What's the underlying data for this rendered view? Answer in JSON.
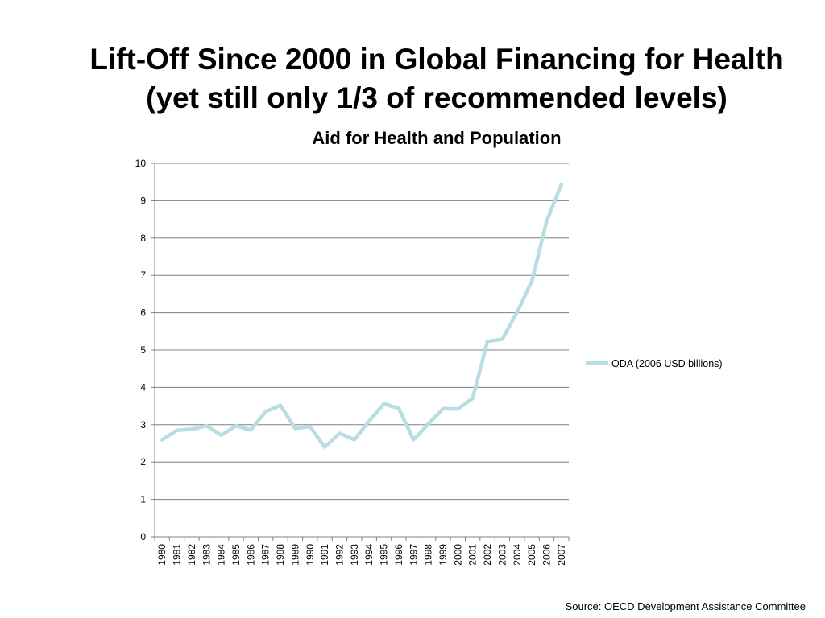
{
  "slide": {
    "title_line1": "Lift-Off Since 2000 in Global Financing for Health",
    "title_line2": "(yet still only 1/3 of recommended levels)",
    "source": "Source: OECD Development Assistance Committee"
  },
  "chart_data": {
    "type": "line",
    "title": "Aid for Health and Population",
    "xlabel": "",
    "ylabel": "",
    "ylim": [
      0,
      10
    ],
    "yticks": [
      0,
      1,
      2,
      3,
      4,
      5,
      6,
      7,
      8,
      9,
      10
    ],
    "grid": true,
    "legend_position": "right",
    "categories": [
      "1980",
      "1981",
      "1982",
      "1983",
      "1984",
      "1985",
      "1986",
      "1987",
      "1988",
      "1989",
      "1990",
      "1991",
      "1992",
      "1993",
      "1994",
      "1995",
      "1996",
      "1997",
      "1998",
      "1999",
      "2000",
      "2001",
      "2002",
      "2003",
      "2004",
      "2005",
      "2006",
      "2007"
    ],
    "series": [
      {
        "name": "ODA (2006 USD billions)",
        "color": "#b9dde2",
        "values": [
          2.6,
          2.85,
          2.88,
          2.97,
          2.72,
          2.97,
          2.86,
          3.35,
          3.52,
          2.9,
          2.95,
          2.4,
          2.77,
          2.6,
          3.1,
          3.56,
          3.44,
          2.6,
          3.02,
          3.43,
          3.42,
          3.71,
          5.23,
          5.29,
          6.01,
          6.84,
          8.45,
          9.44
        ]
      }
    ],
    "colors": {
      "gridline": "#808080",
      "axis": "#808080"
    }
  }
}
